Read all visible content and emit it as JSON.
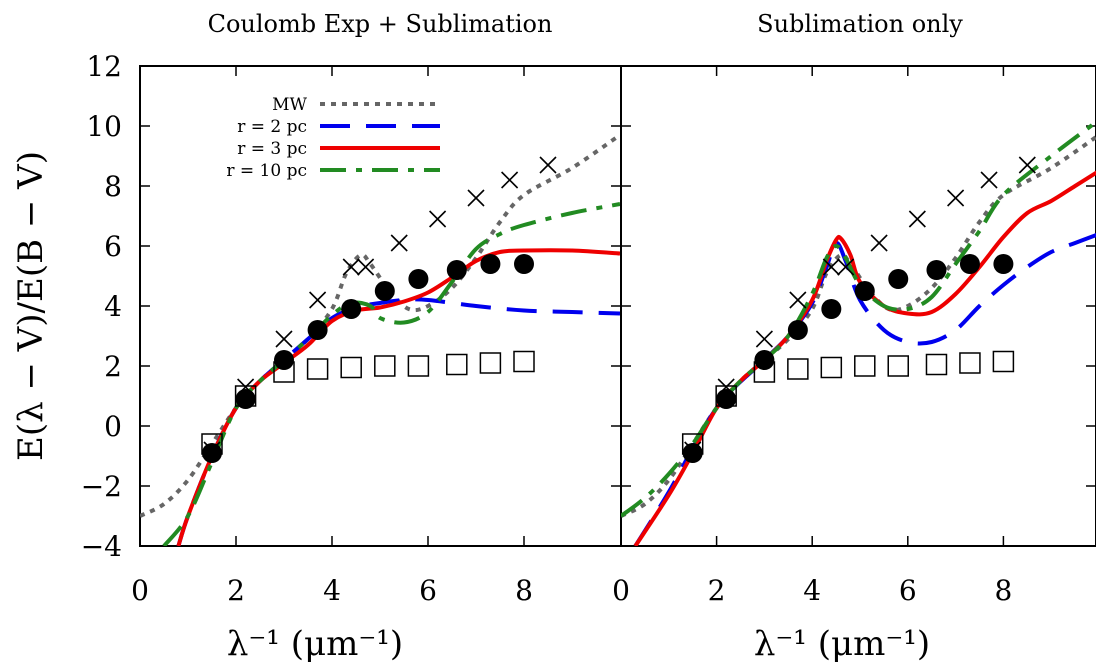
{
  "chart_data": [
    {
      "type": "line",
      "title": "Coulomb Exp + Sublimation",
      "xlabel": "λ⁻¹ (μm⁻¹)",
      "ylabel": "E(λ − V)/E(B − V)",
      "xlim": [
        0,
        10
      ],
      "ylim": [
        -4,
        12
      ],
      "xticks": [
        "0",
        "2",
        "4",
        "6",
        "8"
      ],
      "yticks": [
        "−4",
        "−2",
        "0",
        "2",
        "4",
        "6",
        "8",
        "10",
        "12"
      ],
      "grid": false,
      "legend": "top-left",
      "legend_entries": [
        "MW",
        "r = 2 pc",
        "r = 3 pc",
        "r = 10 pc"
      ],
      "series": [
        {
          "name": "MW",
          "style": "dotted",
          "color": "#666666",
          "x": [
            0,
            0.5,
            1.0,
            1.5,
            2.0,
            2.5,
            3.0,
            3.5,
            4.0,
            4.3,
            4.6,
            4.8,
            5.2,
            5.6,
            6.0,
            6.5,
            7.0,
            7.5,
            8.0,
            9.0,
            10.0
          ],
          "y": [
            -3.0,
            -2.6,
            -1.8,
            -0.6,
            0.6,
            1.5,
            2.2,
            2.9,
            3.9,
            5.1,
            5.7,
            5.4,
            4.5,
            3.9,
            4.0,
            4.6,
            5.6,
            6.8,
            7.7,
            8.6,
            9.7
          ]
        },
        {
          "name": "r = 2 pc",
          "style": "dashed",
          "color": "#0000ee",
          "x": [
            0.8,
            1.0,
            1.5,
            2.0,
            2.5,
            3.0,
            3.5,
            4.0,
            4.5,
            5.0,
            5.5,
            6.0,
            7.0,
            8.0,
            9.0,
            10.0
          ],
          "y": [
            -4.0,
            -3.0,
            -1.0,
            0.6,
            1.5,
            2.2,
            2.9,
            3.6,
            3.95,
            4.1,
            4.2,
            4.2,
            4.0,
            3.85,
            3.8,
            3.75
          ]
        },
        {
          "name": "r = 3 pc",
          "style": "solid",
          "color": "#ee0000",
          "x": [
            0.8,
            1.0,
            1.5,
            2.0,
            2.5,
            3.0,
            3.5,
            4.0,
            4.5,
            5.0,
            5.5,
            6.0,
            6.5,
            7.0,
            7.5,
            8.0,
            9.0,
            10.0
          ],
          "y": [
            -4.0,
            -3.0,
            -1.0,
            0.6,
            1.5,
            2.1,
            2.7,
            3.5,
            3.85,
            3.95,
            4.15,
            4.45,
            4.95,
            5.5,
            5.8,
            5.85,
            5.85,
            5.75
          ]
        },
        {
          "name": "r = 10 pc",
          "style": "dash-dot",
          "color": "#228b22",
          "x": [
            0.5,
            1.0,
            1.5,
            2.0,
            2.5,
            3.0,
            3.5,
            4.0,
            4.4,
            4.8,
            5.0,
            5.5,
            6.0,
            6.5,
            7.0,
            7.5,
            8.0,
            9.0,
            10.0
          ],
          "y": [
            -4.0,
            -3.0,
            -1.2,
            0.6,
            1.5,
            2.2,
            2.9,
            3.7,
            4.1,
            4.0,
            3.6,
            3.45,
            3.8,
            4.8,
            5.9,
            6.4,
            6.7,
            7.1,
            7.4
          ]
        },
        {
          "name": "crosses",
          "marker": "x",
          "color": "#000000",
          "x": [
            1.5,
            2.2,
            3.0,
            3.7,
            4.4,
            4.7,
            5.4,
            6.2,
            7.0,
            7.7,
            8.5
          ],
          "y": [
            -0.8,
            1.3,
            2.9,
            4.2,
            5.3,
            5.3,
            6.1,
            6.9,
            7.6,
            8.2,
            8.7
          ]
        },
        {
          "name": "filled circles",
          "marker": "circle",
          "color": "#000000",
          "x": [
            1.5,
            2.2,
            3.0,
            3.7,
            4.4,
            5.1,
            5.8,
            6.6,
            7.3,
            8.0
          ],
          "y": [
            -0.9,
            0.9,
            2.2,
            3.2,
            3.9,
            4.5,
            4.9,
            5.2,
            5.4,
            5.4
          ]
        },
        {
          "name": "open squares",
          "marker": "square",
          "color": "#000000",
          "x": [
            1.5,
            2.2,
            3.0,
            3.7,
            4.4,
            5.1,
            5.8,
            6.6,
            7.3,
            8.0
          ],
          "y": [
            -0.6,
            1.0,
            1.8,
            1.9,
            1.95,
            2.0,
            2.0,
            2.05,
            2.1,
            2.15
          ]
        }
      ]
    },
    {
      "type": "line",
      "title": "Sublimation only",
      "xlabel": "λ⁻¹ (μm⁻¹)",
      "xlim": [
        0,
        10
      ],
      "ylim": [
        -4,
        12
      ],
      "xticks": [
        "0",
        "2",
        "4",
        "6",
        "8"
      ],
      "grid": false,
      "series": [
        {
          "name": "MW",
          "style": "dotted",
          "color": "#666666",
          "x": [
            0,
            0.5,
            1.0,
            1.5,
            2.0,
            2.5,
            3.0,
            3.5,
            4.0,
            4.3,
            4.6,
            4.8,
            5.2,
            5.6,
            6.0,
            6.5,
            7.0,
            7.5,
            8.0,
            9.0,
            10.0
          ],
          "y": [
            -3.0,
            -2.6,
            -1.8,
            -0.6,
            0.6,
            1.5,
            2.2,
            2.9,
            3.9,
            5.1,
            5.7,
            5.4,
            4.5,
            3.9,
            4.0,
            4.6,
            5.6,
            6.8,
            7.7,
            8.6,
            9.7
          ]
        },
        {
          "name": "r = 2 pc",
          "style": "dashed",
          "color": "#0000ee",
          "x": [
            0.3,
            1.0,
            2.0,
            3.0,
            3.5,
            4.0,
            4.3,
            4.5,
            4.7,
            5.0,
            5.5,
            6.0,
            6.5,
            7.0,
            7.5,
            8.0,
            8.5,
            9.0,
            9.5,
            10.0
          ],
          "y": [
            -4.0,
            -2.2,
            0.6,
            2.2,
            3.0,
            4.1,
            5.3,
            6.1,
            5.5,
            4.2,
            3.2,
            2.8,
            2.8,
            3.2,
            4.0,
            4.7,
            5.3,
            5.8,
            6.1,
            6.4
          ]
        },
        {
          "name": "r = 3 pc",
          "style": "solid",
          "color": "#ee0000",
          "x": [
            0.3,
            1.0,
            1.5,
            2.0,
            2.5,
            3.0,
            3.5,
            4.0,
            4.3,
            4.5,
            4.6,
            4.8,
            5.0,
            5.5,
            6.0,
            6.5,
            7.0,
            7.5,
            8.0,
            8.5,
            9.0,
            9.5,
            10.0
          ],
          "y": [
            -4.0,
            -2.3,
            -0.9,
            0.6,
            1.5,
            2.2,
            3.0,
            4.2,
            5.5,
            6.2,
            6.25,
            5.7,
            4.8,
            4.0,
            3.75,
            3.8,
            4.4,
            5.3,
            6.3,
            7.1,
            7.5,
            8.0,
            8.5
          ]
        },
        {
          "name": "r = 10 pc",
          "style": "dash-dot",
          "color": "#228b22",
          "x": [
            0,
            0.5,
            1.0,
            1.5,
            2.0,
            2.5,
            3.0,
            3.5,
            4.0,
            4.3,
            4.5,
            4.7,
            5.0,
            5.5,
            6.0,
            6.5,
            7.0,
            7.5,
            8.0,
            9.0,
            10.0
          ],
          "y": [
            -3.0,
            -2.4,
            -1.6,
            -0.6,
            0.6,
            1.5,
            2.2,
            3.0,
            4.4,
            5.6,
            6.0,
            5.6,
            4.7,
            4.0,
            3.9,
            4.3,
            5.4,
            6.5,
            7.7,
            9.0,
            10.2
          ]
        },
        {
          "name": "crosses",
          "marker": "x",
          "color": "#000000",
          "x": [
            1.5,
            2.2,
            3.0,
            3.7,
            4.4,
            4.7,
            5.4,
            6.2,
            7.0,
            7.7,
            8.5
          ],
          "y": [
            -0.8,
            1.3,
            2.9,
            4.2,
            5.3,
            5.3,
            6.1,
            6.9,
            7.6,
            8.2,
            8.7
          ]
        },
        {
          "name": "filled circles",
          "marker": "circle",
          "color": "#000000",
          "x": [
            1.5,
            2.2,
            3.0,
            3.7,
            4.4,
            5.1,
            5.8,
            6.6,
            7.3,
            8.0
          ],
          "y": [
            -0.9,
            0.9,
            2.2,
            3.2,
            3.9,
            4.5,
            4.9,
            5.2,
            5.4,
            5.4
          ]
        },
        {
          "name": "open squares",
          "marker": "square",
          "color": "#000000",
          "x": [
            1.5,
            2.2,
            3.0,
            3.7,
            4.4,
            5.1,
            5.8,
            6.6,
            7.3,
            8.0
          ],
          "y": [
            -0.6,
            1.0,
            1.8,
            1.9,
            1.95,
            2.0,
            2.0,
            2.05,
            2.1,
            2.15
          ]
        }
      ]
    }
  ]
}
